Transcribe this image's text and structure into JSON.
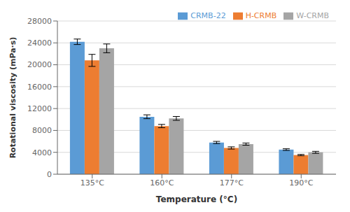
{
  "chart_data": {
    "type": "bar",
    "categories": [
      "135°C",
      "160°C",
      "177°C",
      "190°C"
    ],
    "series": [
      {
        "name": "CRMB-22",
        "color": "#5B9BD5",
        "values": [
          24200,
          10500,
          5800,
          4500
        ],
        "errors": [
          500,
          350,
          200,
          150
        ]
      },
      {
        "name": "H-CRMB",
        "color": "#ED7D31",
        "values": [
          20800,
          8800,
          4800,
          3500
        ],
        "errors": [
          1100,
          300,
          200,
          120
        ]
      },
      {
        "name": "W-CRMB",
        "color": "#A5A5A5",
        "values": [
          23000,
          10200,
          5500,
          4000
        ],
        "errors": [
          800,
          350,
          200,
          180
        ]
      }
    ],
    "xlabel": "Temperature (°C)",
    "ylabel": "Rotational viscosity (mPa·s)",
    "ylim": [
      0,
      28000
    ],
    "yticks": [
      0,
      4000,
      8000,
      12000,
      16000,
      20000,
      24000,
      28000
    ],
    "grid": true,
    "legend": "upper right"
  }
}
